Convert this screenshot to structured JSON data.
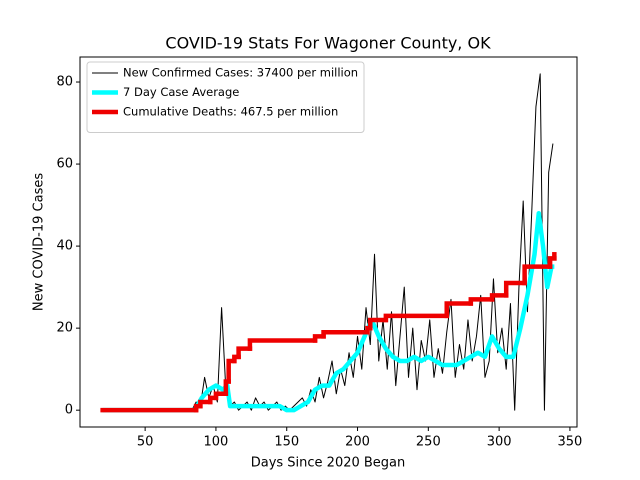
{
  "chart_data": {
    "type": "line",
    "title": "COVID-19 Stats For Wagoner County, OK",
    "x_label": "Days Since 2020 Began",
    "y_label": "New COVID-19 Cases",
    "xlim": [
      4,
      355
    ],
    "ylim": [
      -4.1,
      86.1
    ],
    "xticks": [
      50,
      100,
      150,
      200,
      250,
      300,
      350
    ],
    "yticks": [
      0,
      20,
      40,
      60,
      80
    ],
    "grid": false,
    "legend": "upper left",
    "series": [
      {
        "name": "New Confirmed Cases: 37400 per million",
        "color": "#000000",
        "width": 1,
        "drawstyle": "default",
        "x": [
          20,
          23,
          26,
          29,
          32,
          35,
          38,
          41,
          44,
          47,
          50,
          53,
          56,
          59,
          62,
          65,
          68,
          71,
          74,
          77,
          80,
          83,
          86,
          89,
          92,
          95,
          98,
          101,
          104,
          107,
          110,
          113,
          116,
          119,
          122,
          125,
          128,
          131,
          134,
          137,
          140,
          143,
          146,
          149,
          152,
          155,
          158,
          161,
          164,
          167,
          170,
          173,
          176,
          179,
          182,
          185,
          188,
          191,
          194,
          197,
          200,
          203,
          206,
          209,
          212,
          215,
          218,
          221,
          224,
          227,
          230,
          233,
          236,
          239,
          242,
          245,
          248,
          251,
          254,
          257,
          260,
          263,
          266,
          269,
          272,
          275,
          278,
          281,
          284,
          287,
          290,
          293,
          296,
          299,
          302,
          305,
          308,
          311,
          314,
          317,
          320,
          323,
          326,
          329,
          332,
          335,
          338
        ],
        "values": [
          0,
          0,
          0,
          0,
          0,
          0,
          0,
          0,
          0,
          0,
          0,
          0,
          0,
          0,
          0,
          0,
          0,
          0,
          0,
          0,
          0,
          0,
          2,
          1,
          8,
          3,
          6,
          2,
          25,
          5,
          1,
          2,
          0,
          1,
          2,
          0,
          3,
          1,
          2,
          0,
          1,
          2,
          0,
          1,
          0,
          1,
          2,
          3,
          1,
          5,
          2,
          8,
          3,
          7,
          12,
          4,
          10,
          6,
          14,
          8,
          18,
          10,
          25,
          16,
          38,
          12,
          22,
          10,
          24,
          6,
          18,
          30,
          8,
          20,
          5,
          17,
          12,
          22,
          8,
          15,
          9,
          19,
          27,
          8,
          16,
          10,
          22,
          12,
          18,
          28,
          8,
          12,
          32,
          14,
          20,
          10,
          26,
          0,
          30,
          51,
          24,
          48,
          74,
          82,
          0,
          58,
          65
        ]
      },
      {
        "name": "7 Day Case Average",
        "color": "#00ffff",
        "width": 4.5,
        "drawstyle": "default",
        "x": [
          20,
          30,
          40,
          50,
          60,
          70,
          80,
          85,
          90,
          95,
          100,
          105,
          108,
          110,
          115,
          120,
          125,
          130,
          135,
          140,
          145,
          150,
          155,
          160,
          165,
          170,
          175,
          180,
          185,
          190,
          195,
          200,
          205,
          210,
          215,
          220,
          225,
          230,
          235,
          240,
          245,
          250,
          255,
          260,
          265,
          270,
          275,
          280,
          285,
          290,
          295,
          300,
          305,
          310,
          315,
          320,
          325,
          328,
          331,
          334,
          337,
          339
        ],
        "values": [
          0,
          0,
          0,
          0,
          0,
          0,
          0,
          0,
          3,
          5,
          6,
          5,
          6,
          1,
          1,
          1,
          1,
          1,
          1,
          1,
          1,
          0,
          0,
          1,
          2,
          5,
          6,
          6,
          9,
          10,
          12,
          14,
          18,
          22,
          18,
          15,
          13,
          12,
          12,
          13,
          12,
          13,
          12,
          11,
          11,
          11,
          12,
          13,
          14,
          13,
          18,
          15,
          13,
          13,
          20,
          28,
          38,
          48,
          40,
          30,
          35,
          35
        ]
      },
      {
        "name": "Cumulative Deaths: 467.5 per million",
        "color": "#ee0000",
        "width": 4.5,
        "drawstyle": "steps-post",
        "x": [
          20,
          86,
          89,
          96,
          100,
          107,
          109,
          113,
          116,
          124,
          170,
          176,
          207,
          209,
          220,
          263,
          280,
          295,
          305,
          318,
          336,
          339
        ],
        "values": [
          0,
          1,
          2,
          3,
          4,
          7,
          12,
          13,
          15,
          17,
          18,
          19,
          20,
          22,
          23,
          26,
          27,
          28,
          31,
          35,
          37,
          38
        ]
      }
    ]
  }
}
